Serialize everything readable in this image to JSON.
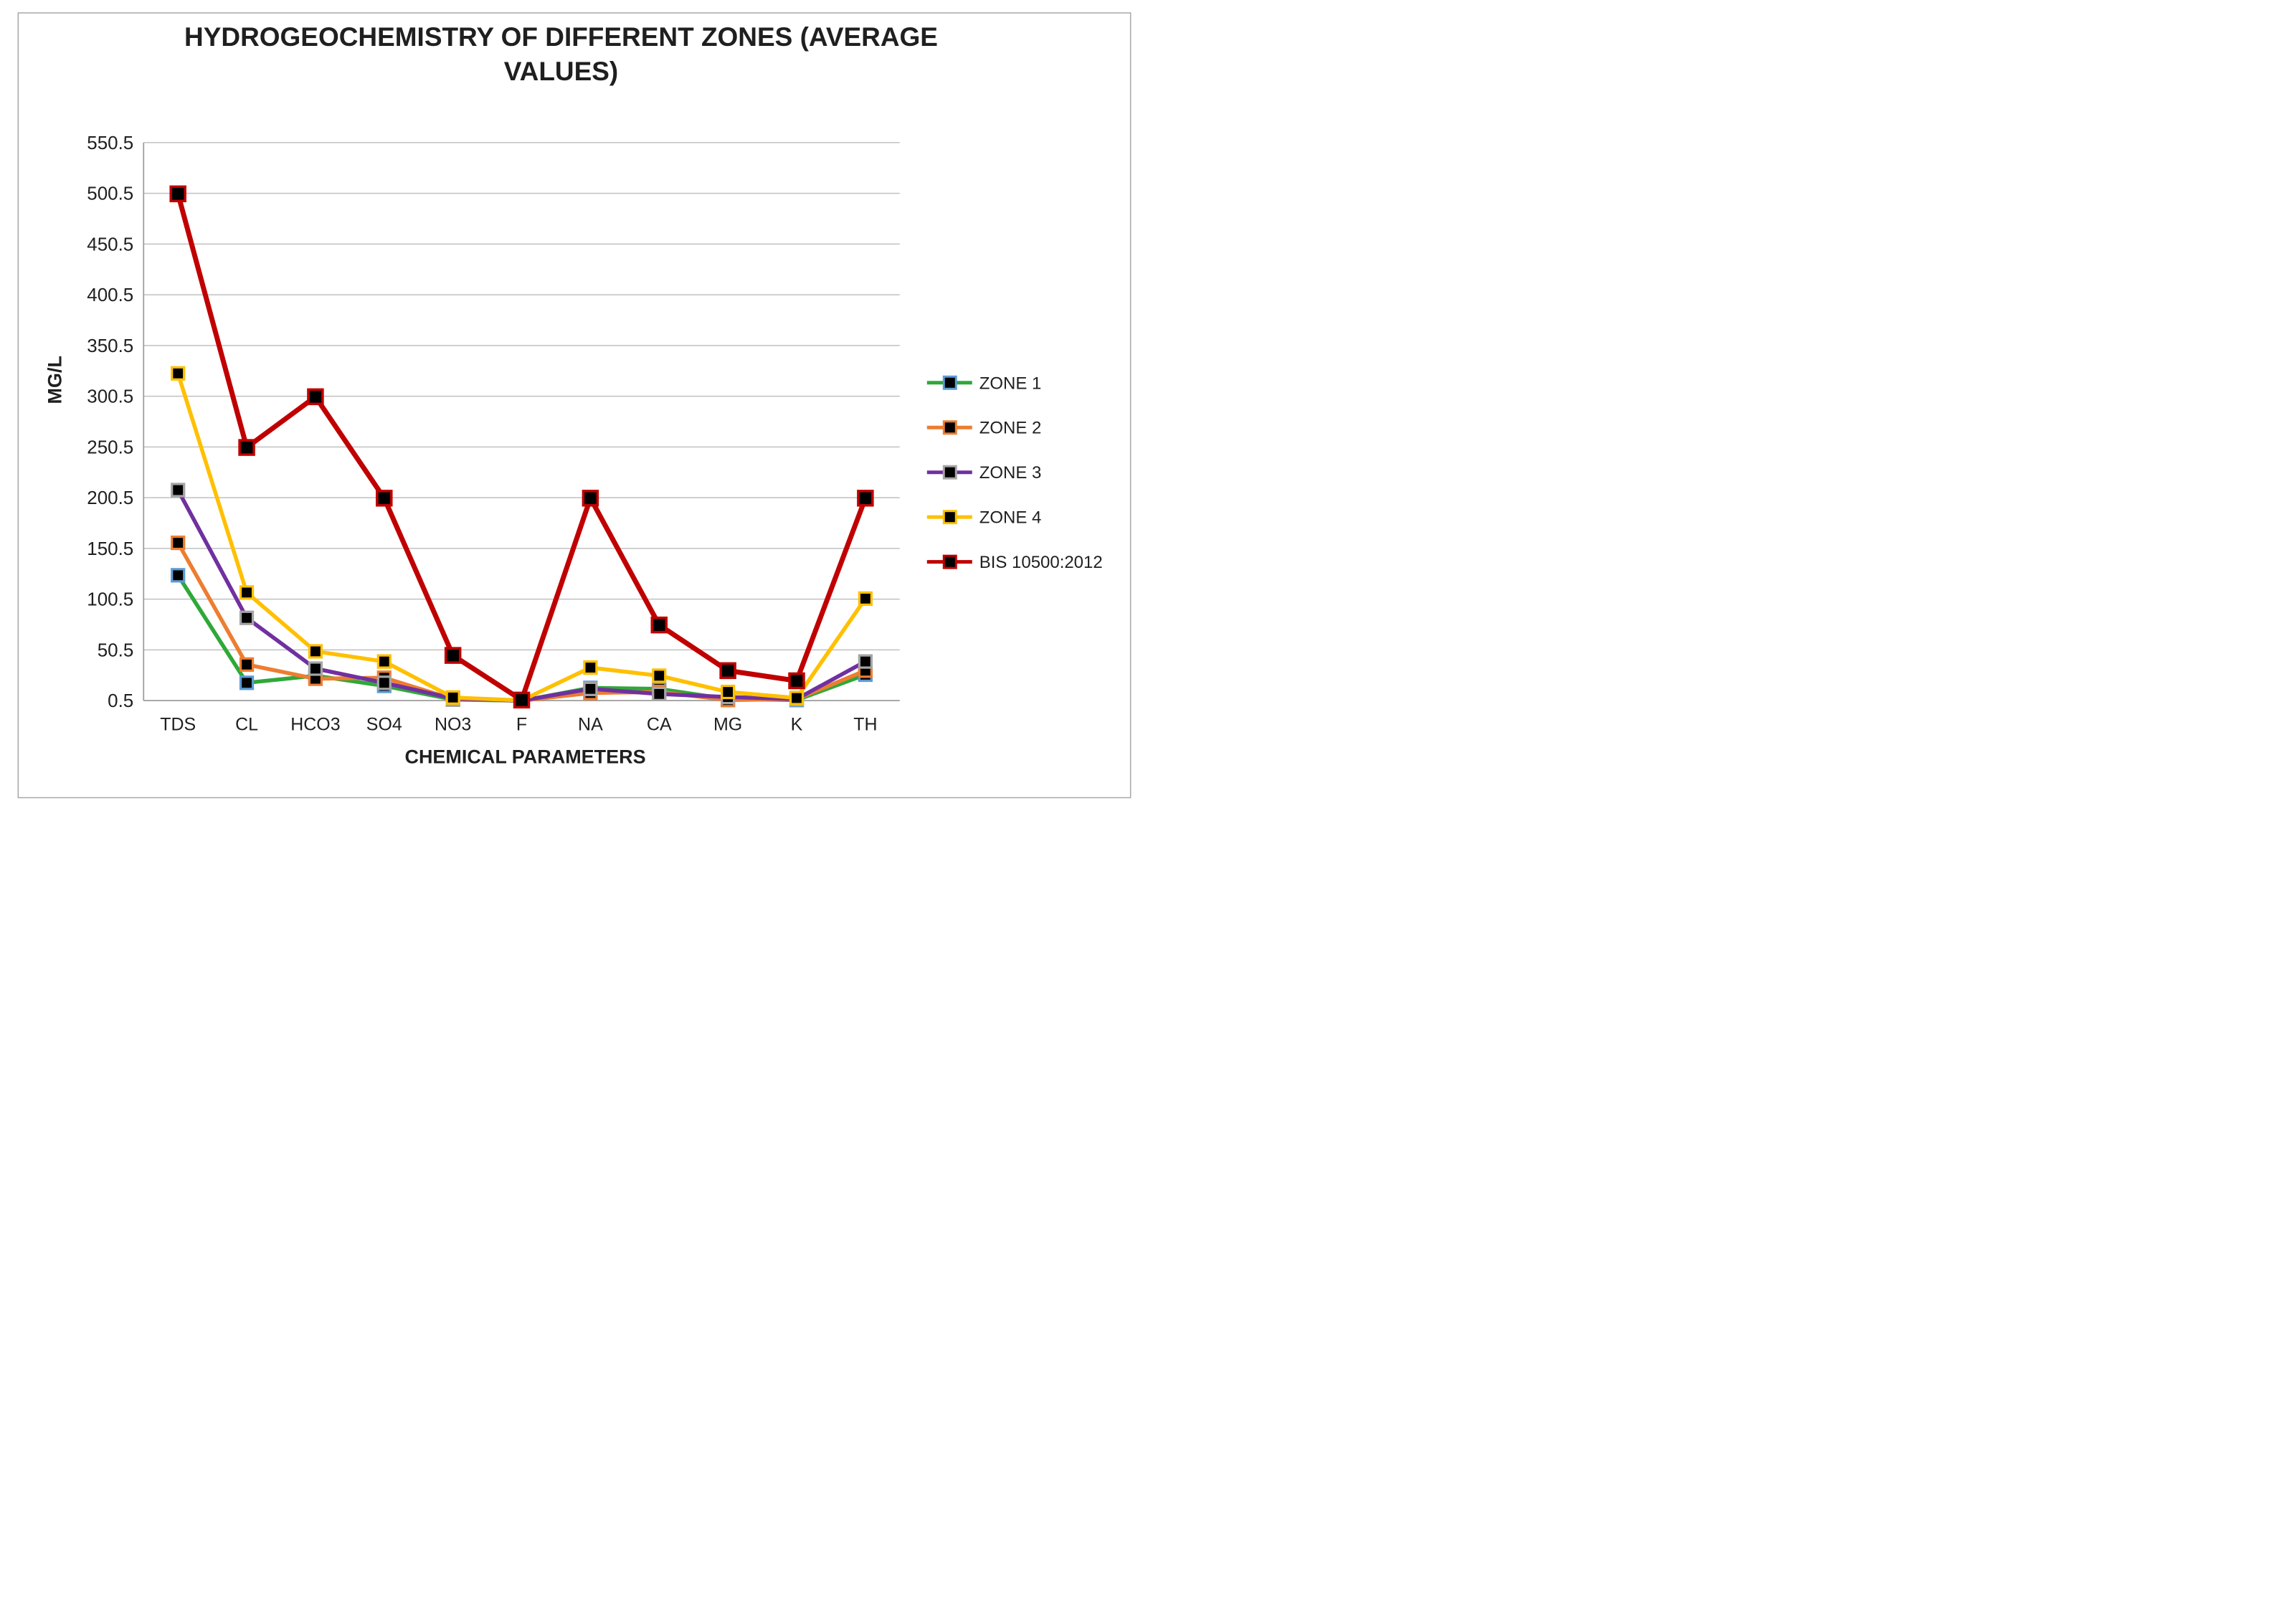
{
  "page": {
    "background": "#ffffff",
    "border_color": "#a7a7a7"
  },
  "chart_data": {
    "type": "line",
    "title": "HYDROGEOCHEMISTRY OF DIFFERENT ZONES (AVERAGE VALUES)",
    "title_lines": [
      "HYDROGEOCHEMISTRY OF DIFFERENT ZONES (AVERAGE",
      "VALUES)"
    ],
    "xlabel": "CHEMICAL PARAMETERS",
    "ylabel": "MG/L",
    "grid": true,
    "legend_position": "right",
    "categories": [
      "TDS",
      "CL",
      "HCO3",
      "SO4",
      "NO3",
      "F",
      "NA",
      "CA",
      "MG",
      "K",
      "TH"
    ],
    "y_axis": {
      "min": 0.5,
      "max": 550.5,
      "step": 50,
      "tick_labels": [
        "0.5",
        "50.5",
        "100.5",
        "150.5",
        "200.5",
        "250.5",
        "300.5",
        "350.5",
        "400.5",
        "450.5",
        "500.5",
        "550.5"
      ]
    },
    "colors": {
      "gridline": "#c0c0c0",
      "axis_line": "#9c9c9c",
      "marker_fill": "#000000",
      "title_text": "#000000",
      "tick_text": "#1f1f1f"
    },
    "series": [
      {
        "name": "ZONE 1",
        "color": "#2fa838",
        "marker_border": "#5b9bd5",
        "marker_fill": "#000000",
        "values": [
          124,
          18,
          25,
          15,
          1.5,
          0.4,
          13,
          12,
          2,
          1,
          26
        ]
      },
      {
        "name": "ZONE 2",
        "color": "#ed7d31",
        "marker_border": "#ed7d31",
        "marker_fill": "#000000",
        "values": [
          156,
          36,
          22,
          23,
          2,
          0.4,
          8,
          9,
          1,
          2,
          30
        ]
      },
      {
        "name": "ZONE 3",
        "color": "#7030a0",
        "marker_border": "#a5a5a5",
        "marker_fill": "#000000",
        "values": [
          208,
          82,
          32,
          18,
          2.5,
          0.5,
          12,
          7,
          4,
          2,
          39
        ]
      },
      {
        "name": "ZONE 4",
        "color": "#ffc000",
        "marker_border": "#ffc000",
        "marker_fill": "#000000",
        "values": [
          323,
          107,
          49,
          39,
          3.5,
          0.6,
          33,
          25,
          9,
          3,
          101
        ]
      },
      {
        "name": "BIS 10500:2012",
        "color": "#c00000",
        "marker_border": "#c00000",
        "marker_fill": "#000000",
        "values": [
          500,
          250,
          300,
          200,
          45,
          1,
          200,
          75,
          30,
          20,
          200
        ]
      }
    ]
  }
}
